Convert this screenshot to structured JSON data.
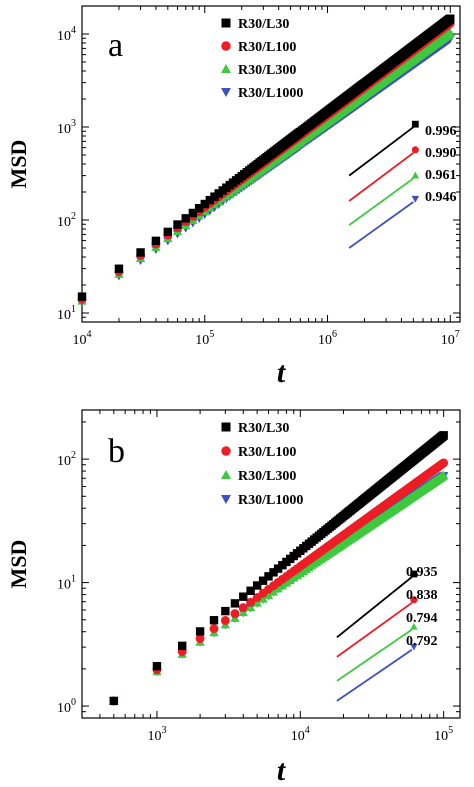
{
  "chart_data": [
    {
      "type": "scatter",
      "panel_label": "a",
      "ylabel": "MSD",
      "xlabel": "t",
      "xscale": "log",
      "yscale": "log",
      "xlim": [
        10000,
        12000000
      ],
      "ylim": [
        8,
        20000
      ],
      "x_ticks": [
        10000,
        100000,
        1000000,
        10000000
      ],
      "x_tick_labels": [
        [
          "10",
          "4"
        ],
        [
          "10",
          "5"
        ],
        [
          "10",
          "6"
        ],
        [
          "10",
          "7"
        ]
      ],
      "y_ticks": [
        10,
        100,
        1000,
        10000
      ],
      "y_tick_labels": [
        [
          "10",
          "1"
        ],
        [
          "10",
          "2"
        ],
        [
          "10",
          "3"
        ],
        [
          "10",
          "4"
        ]
      ],
      "legend_position": "top-center",
      "series": [
        {
          "name": "R30/L30",
          "color": "#000000",
          "marker": "square",
          "msd_at_1e4": 15,
          "exponent": 0.996
        },
        {
          "name": "R30/L100",
          "color": "#ee1c25",
          "marker": "circle",
          "msd_at_1e4": 14,
          "exponent": 0.99
        },
        {
          "name": "R30/L300",
          "color": "#3ec93e",
          "marker": "triangle-up",
          "msd_at_1e4": 13.5,
          "exponent": 0.961
        },
        {
          "name": "R30/L1000",
          "color": "#3f4fbf",
          "marker": "triangle-down",
          "msd_at_1e4": 13,
          "exponent": 0.946
        }
      ],
      "fit_lines": {
        "x_range": [
          1500000,
          5000000
        ],
        "y_starts": [
          300,
          160,
          88,
          50
        ]
      },
      "slope_labels": [
        "0.996",
        "0.990",
        "0.961",
        "0.946"
      ]
    },
    {
      "type": "scatter",
      "panel_label": "b",
      "ylabel": "MSD",
      "xlabel": "t",
      "xscale": "log",
      "yscale": "log",
      "xlim": [
        300,
        130000
      ],
      "ylim": [
        0.8,
        250
      ],
      "x_ticks": [
        1000,
        10000,
        100000
      ],
      "x_tick_labels": [
        [
          "10",
          "3"
        ],
        [
          "10",
          "4"
        ],
        [
          "10",
          "5"
        ]
      ],
      "y_ticks": [
        1,
        10,
        100
      ],
      "y_tick_labels": [
        [
          "10",
          "0"
        ],
        [
          "10",
          "1"
        ],
        [
          "10",
          "2"
        ]
      ],
      "legend_position": "top-center",
      "series": [
        {
          "name": "R30/L30",
          "color": "#000000",
          "marker": "square",
          "msd_at_500": 1.1,
          "exponent": 0.935
        },
        {
          "name": "R30/L100",
          "color": "#ee1c25",
          "marker": "circle",
          "msd_at_500": 1.1,
          "exponent": 0.838
        },
        {
          "name": "R30/L300",
          "color": "#3ec93e",
          "marker": "triangle-up",
          "msd_at_500": 1.1,
          "exponent": 0.794
        },
        {
          "name": "R30/L1000",
          "color": "#3f4fbf",
          "marker": "triangle-down",
          "msd_at_500": 1.1,
          "exponent": 0.792
        }
      ],
      "fit_lines": {
        "x_range": [
          18000,
          60000
        ],
        "y_starts": [
          3.6,
          2.5,
          1.6,
          1.1
        ]
      },
      "slope_labels": [
        "0.935",
        "0.838",
        "0.794",
        "0.792"
      ]
    }
  ]
}
